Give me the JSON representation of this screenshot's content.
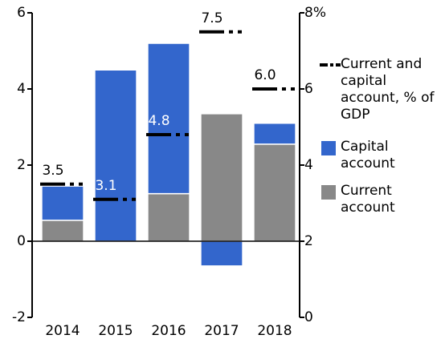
{
  "chart_data": {
    "type": "bar",
    "stacked": true,
    "categories": [
      "2014",
      "2015",
      "2016",
      "2017",
      "2018"
    ],
    "series": [
      {
        "name": "Current and capital account, % of GDP",
        "type": "line",
        "axis": "y2",
        "color": "#000000",
        "values": [
          3.5,
          3.1,
          4.8,
          7.5,
          6.0
        ],
        "value_labels": [
          "3.5",
          "3.1",
          "4.8",
          "7.5",
          "6.0"
        ],
        "label_colors": [
          "#000000",
          "#ffffff",
          "#ffffff",
          "#000000",
          "#000000"
        ]
      },
      {
        "name": "Capital account",
        "color": "#3366cc",
        "values": [
          0.9,
          4.5,
          3.95,
          -0.65,
          0.55
        ]
      },
      {
        "name": "Current account",
        "color": "#888888",
        "values": [
          0.55,
          0,
          1.25,
          3.35,
          2.55
        ]
      }
    ],
    "ylim": [
      -2,
      6
    ],
    "yticks": [
      -2,
      0,
      2,
      4,
      6
    ],
    "y2lim": [
      0,
      8
    ],
    "y2ticks": [
      0,
      2,
      4,
      6,
      {
        "value": 8,
        "label": "8%"
      }
    ]
  }
}
